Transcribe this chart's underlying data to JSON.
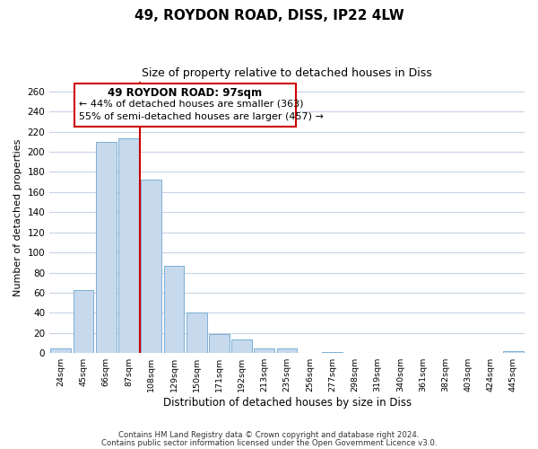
{
  "title": "49, ROYDON ROAD, DISS, IP22 4LW",
  "subtitle": "Size of property relative to detached houses in Diss",
  "xlabel": "Distribution of detached houses by size in Diss",
  "ylabel": "Number of detached properties",
  "bar_labels": [
    "24sqm",
    "45sqm",
    "66sqm",
    "87sqm",
    "108sqm",
    "129sqm",
    "150sqm",
    "171sqm",
    "192sqm",
    "213sqm",
    "235sqm",
    "256sqm",
    "277sqm",
    "298sqm",
    "319sqm",
    "340sqm",
    "361sqm",
    "382sqm",
    "403sqm",
    "424sqm",
    "445sqm"
  ],
  "bar_values": [
    5,
    63,
    210,
    213,
    172,
    87,
    40,
    19,
    14,
    5,
    5,
    0,
    1,
    0,
    0,
    0,
    0,
    0,
    0,
    0,
    2
  ],
  "bar_color": "#c6d9ed",
  "bar_edge_color": "#7ab0d4",
  "vline_x": 3.5,
  "vline_color": "#cc0000",
  "ylim": [
    0,
    270
  ],
  "yticks": [
    0,
    20,
    40,
    60,
    80,
    100,
    120,
    140,
    160,
    180,
    200,
    220,
    240,
    260
  ],
  "annotation_title": "49 ROYDON ROAD: 97sqm",
  "annotation_line1": "← 44% of detached houses are smaller (363)",
  "annotation_line2": "55% of semi-detached houses are larger (457) →",
  "annotation_box_color": "#ffffff",
  "annotation_box_edge": "#cc0000",
  "footer1": "Contains HM Land Registry data © Crown copyright and database right 2024.",
  "footer2": "Contains public sector information licensed under the Open Government Licence v3.0.",
  "background_color": "#ffffff",
  "grid_color": "#c8d4e4"
}
